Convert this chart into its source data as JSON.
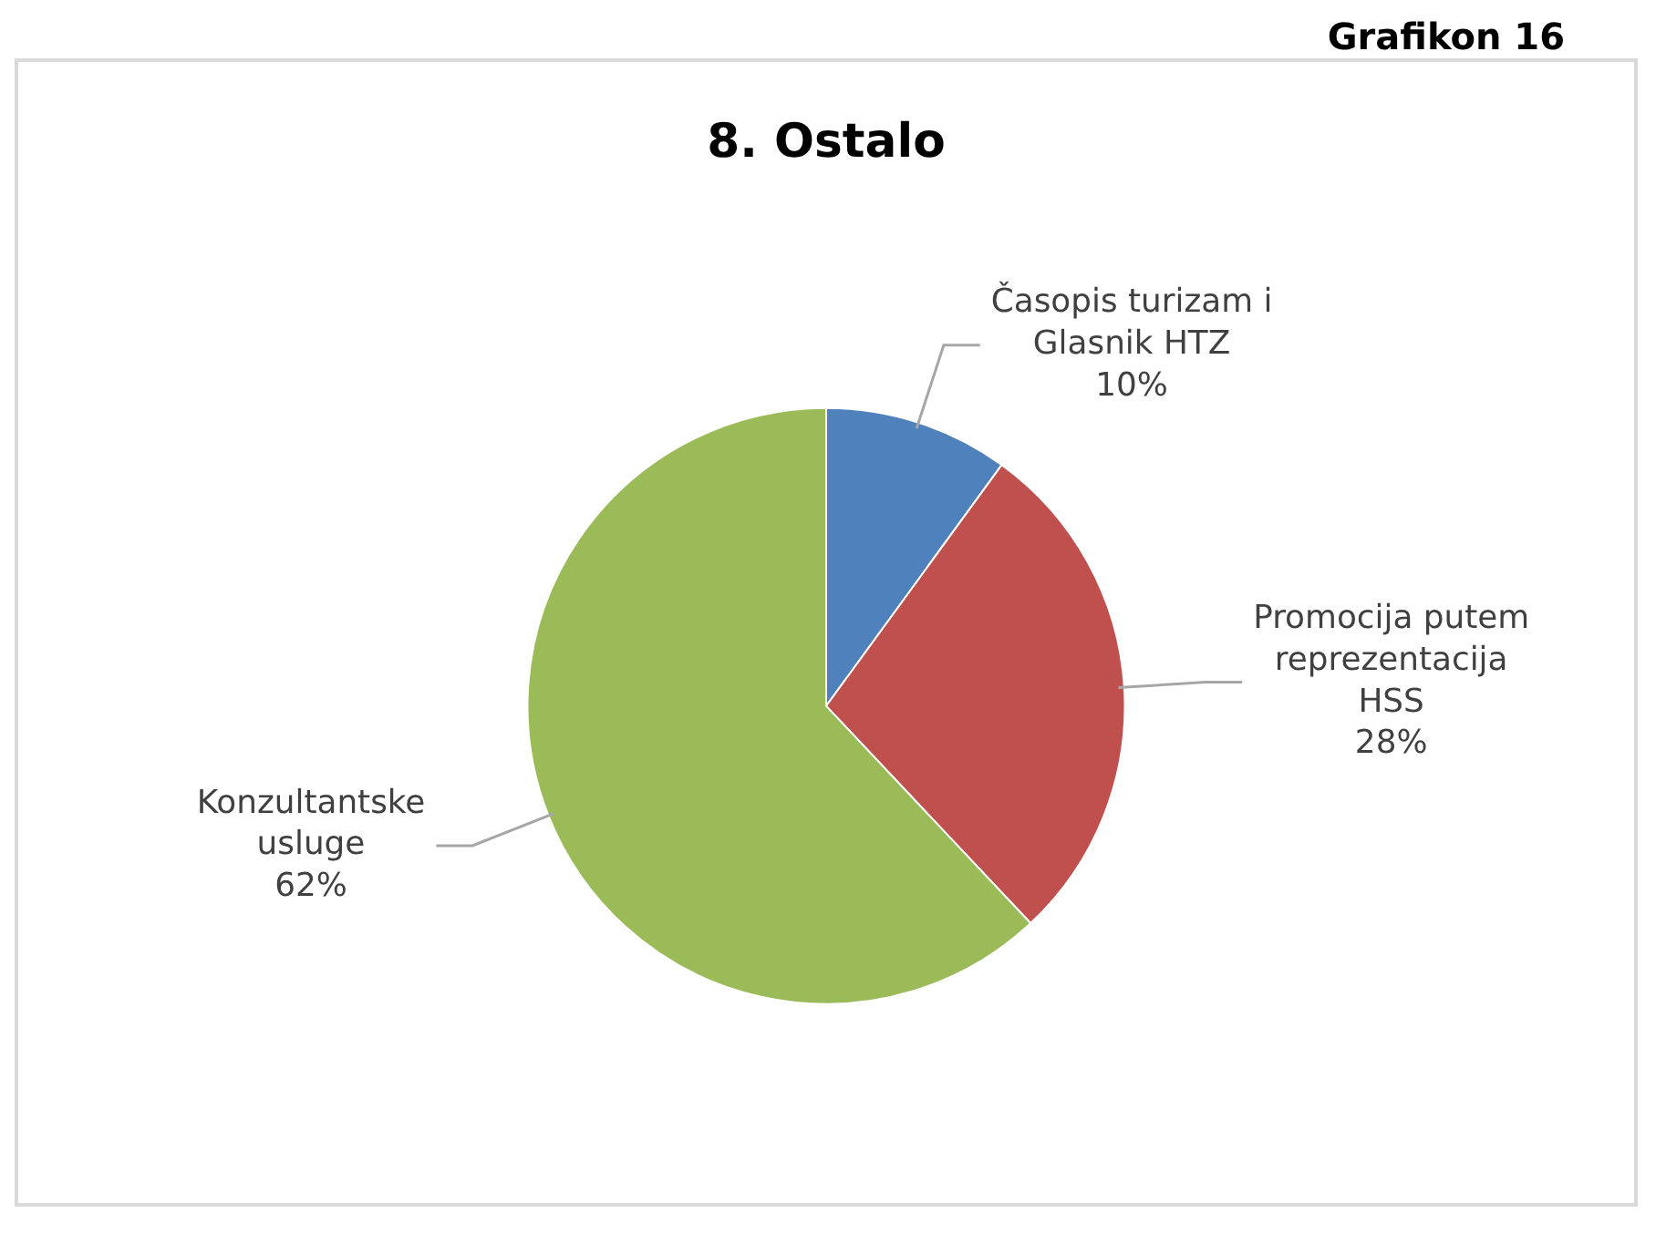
{
  "chart_data": {
    "type": "pie",
    "title": "8. Ostalo",
    "annotations": [
      "Grafikon 16"
    ],
    "categories": [
      "Časopis turizam i Glasnik HTZ",
      "Promocija putem reprezentacija HSS",
      "Konzultantske usluge"
    ],
    "values": [
      10,
      28,
      62
    ],
    "colors": [
      "#4f81bd",
      "#c0504d",
      "#9bbb59"
    ],
    "value_labels": [
      "10%",
      "28%",
      "62%"
    ],
    "legend": false
  }
}
